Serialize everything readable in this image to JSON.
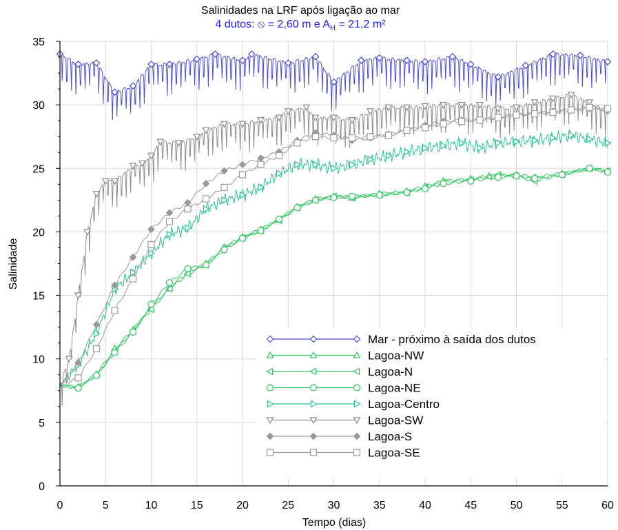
{
  "chart_data": {
    "type": "line",
    "title": "Salinidades na LRF após ligação ao mar",
    "subtitle": {
      "prefix": "4 dutos: ",
      "diameter_symbol": "⦸",
      "middle": " =  2,60 m e A",
      "sub": "H",
      "suffix": " = 21,2 m²"
    },
    "xlabel": "Tempo (dias)",
    "ylabel": "Salinidade",
    "xlim": [
      0,
      60
    ],
    "ylim": [
      0,
      35
    ],
    "xticks": [
      "0",
      "5",
      "10",
      "15",
      "20",
      "25",
      "30",
      "35",
      "40",
      "45",
      "50",
      "55",
      "60"
    ],
    "yticks": [
      "0",
      "5",
      "10",
      "15",
      "20",
      "25",
      "30",
      "35"
    ],
    "grid": true,
    "legend_position": "lower-right",
    "series": [
      {
        "name": "Mar - próximo à saída dos dutos",
        "color": "#4a4ad8",
        "marker": "diamond",
        "style": "osc",
        "osc_amp": 2.6,
        "points": [
          [
            0,
            34
          ],
          [
            2,
            33.2
          ],
          [
            4,
            33.3
          ],
          [
            6,
            31
          ],
          [
            8,
            31.5
          ],
          [
            10,
            33.2
          ],
          [
            12,
            33.2
          ],
          [
            15,
            33.6
          ],
          [
            17,
            34
          ],
          [
            20,
            33.5
          ],
          [
            21,
            34
          ],
          [
            25,
            33.3
          ],
          [
            28,
            33.8
          ],
          [
            30,
            31.8
          ],
          [
            33,
            33.5
          ],
          [
            35,
            33.7
          ],
          [
            38,
            33.5
          ],
          [
            40,
            33.4
          ],
          [
            43,
            33.8
          ],
          [
            45,
            33.2
          ],
          [
            48,
            32.2
          ],
          [
            51,
            33.1
          ],
          [
            54,
            34
          ],
          [
            57,
            33.9
          ],
          [
            60,
            33.4
          ]
        ]
      },
      {
        "name": "Lagoa-NW",
        "color": "#2ec860",
        "marker": "triangle-up",
        "style": "smooth",
        "points": [
          [
            0,
            7.9
          ],
          [
            2,
            7.8
          ],
          [
            4,
            8.8
          ],
          [
            6,
            10.8
          ],
          [
            8,
            12.3
          ],
          [
            10,
            14
          ],
          [
            12,
            15.6
          ],
          [
            14,
            16.8
          ],
          [
            16,
            17.5
          ],
          [
            18,
            18.8
          ],
          [
            20,
            19.6
          ],
          [
            22,
            20.2
          ],
          [
            24,
            21
          ],
          [
            26,
            22
          ],
          [
            28,
            22.6
          ],
          [
            30,
            22.8
          ],
          [
            32,
            22.7
          ],
          [
            35,
            23
          ],
          [
            38,
            23.2
          ],
          [
            40,
            23.6
          ],
          [
            42,
            24
          ],
          [
            45,
            24.2
          ],
          [
            47,
            24.4
          ],
          [
            50,
            24.5
          ],
          [
            52,
            24.3
          ],
          [
            55,
            24.6
          ],
          [
            58,
            25
          ],
          [
            60,
            24.8
          ]
        ]
      },
      {
        "name": "Lagoa-N",
        "color": "#2ec860",
        "marker": "triangle-left",
        "style": "smooth",
        "points": [
          [
            0,
            7.9
          ],
          [
            2,
            7.8
          ],
          [
            4,
            8.7
          ],
          [
            6,
            10.6
          ],
          [
            8,
            12.2
          ],
          [
            10,
            13.9
          ],
          [
            12,
            15.5
          ],
          [
            14,
            16.7
          ],
          [
            16,
            17.4
          ],
          [
            18,
            18.7
          ],
          [
            20,
            19.5
          ],
          [
            22,
            20.1
          ],
          [
            24,
            20.9
          ],
          [
            26,
            21.9
          ],
          [
            28,
            22.5
          ],
          [
            30,
            22.8
          ],
          [
            32,
            22.7
          ],
          [
            35,
            22.9
          ],
          [
            38,
            23.1
          ],
          [
            40,
            23.5
          ],
          [
            42,
            23.9
          ],
          [
            45,
            24.1
          ],
          [
            48,
            24.5
          ],
          [
            50,
            24.4
          ],
          [
            52,
            24
          ],
          [
            55,
            24.5
          ],
          [
            58,
            25
          ],
          [
            60,
            24.8
          ]
        ]
      },
      {
        "name": "Lagoa-NE",
        "color": "#2ec860",
        "marker": "circle",
        "style": "smooth",
        "points": [
          [
            0,
            7.9
          ],
          [
            2,
            7.7
          ],
          [
            4,
            8.7
          ],
          [
            6,
            10.5
          ],
          [
            8,
            12.1
          ],
          [
            10,
            14.3
          ],
          [
            12,
            16
          ],
          [
            14,
            17.1
          ],
          [
            16,
            17.4
          ],
          [
            18,
            18.6
          ],
          [
            20,
            19.5
          ],
          [
            22,
            20.1
          ],
          [
            24,
            21
          ],
          [
            26,
            21.9
          ],
          [
            28,
            22.5
          ],
          [
            30,
            22.7
          ],
          [
            32,
            22.8
          ],
          [
            35,
            22.9
          ],
          [
            38,
            23.1
          ],
          [
            40,
            23.4
          ],
          [
            42,
            23.8
          ],
          [
            45,
            24
          ],
          [
            48,
            24.3
          ],
          [
            50,
            24.4
          ],
          [
            52,
            24.2
          ],
          [
            55,
            24.5
          ],
          [
            58,
            25
          ],
          [
            60,
            24.7
          ]
        ]
      },
      {
        "name": "Lagoa-Centro",
        "color": "#28c48e",
        "marker": "triangle-right",
        "style": "noisy",
        "osc_amp": 0.55,
        "points": [
          [
            0,
            7.9
          ],
          [
            2,
            9.5
          ],
          [
            4,
            12
          ],
          [
            6,
            15.5
          ],
          [
            8,
            16.8
          ],
          [
            10,
            18.3
          ],
          [
            12,
            19.8
          ],
          [
            14,
            20.3
          ],
          [
            16,
            21.8
          ],
          [
            18,
            22.5
          ],
          [
            20,
            22.9
          ],
          [
            22,
            23.5
          ],
          [
            24,
            24.6
          ],
          [
            26,
            25.3
          ],
          [
            28,
            25.3
          ],
          [
            30,
            25
          ],
          [
            32,
            25.3
          ],
          [
            34,
            25.7
          ],
          [
            36,
            26
          ],
          [
            38,
            26.3
          ],
          [
            40,
            26.6
          ],
          [
            42,
            26.8
          ],
          [
            44,
            27
          ],
          [
            46,
            26.6
          ],
          [
            48,
            27
          ],
          [
            50,
            27.1
          ],
          [
            52,
            27.2
          ],
          [
            54,
            27.4
          ],
          [
            56,
            27.6
          ],
          [
            58,
            27.3
          ],
          [
            60,
            27
          ]
        ]
      },
      {
        "name": "Lagoa-SW",
        "color": "#8c8c8c",
        "marker": "triangle-down",
        "style": "osc",
        "osc_amp": 2.4,
        "points": [
          [
            0,
            7.9
          ],
          [
            1,
            10
          ],
          [
            2,
            15
          ],
          [
            3,
            20
          ],
          [
            4,
            23
          ],
          [
            5,
            24
          ],
          [
            6,
            24
          ],
          [
            8,
            25.2
          ],
          [
            9,
            25.4
          ],
          [
            10,
            26
          ],
          [
            11,
            27.1
          ],
          [
            13,
            27
          ],
          [
            15,
            27.5
          ],
          [
            16,
            28
          ],
          [
            18,
            28.5
          ],
          [
            20,
            28.5
          ],
          [
            22,
            28.8
          ],
          [
            24,
            29
          ],
          [
            25,
            29.5
          ],
          [
            27,
            29.8
          ],
          [
            28,
            29
          ],
          [
            30,
            29
          ],
          [
            32,
            28.8
          ],
          [
            34,
            29.5
          ],
          [
            36,
            29.8
          ],
          [
            38,
            29.8
          ],
          [
            40,
            29.9
          ],
          [
            42,
            30
          ],
          [
            44,
            30
          ],
          [
            46,
            30
          ],
          [
            48,
            29.7
          ],
          [
            50,
            29.8
          ],
          [
            52,
            30.2
          ],
          [
            54,
            30.5
          ],
          [
            56,
            30.8
          ],
          [
            58,
            30.2
          ],
          [
            60,
            29.5
          ]
        ]
      },
      {
        "name": "Lagoa-S",
        "color": "#999999",
        "marker": "diamond-filled",
        "style": "smooth",
        "points": [
          [
            0,
            7.9
          ],
          [
            2,
            9.7
          ],
          [
            4,
            12.7
          ],
          [
            6,
            15.8
          ],
          [
            8,
            18
          ],
          [
            10,
            20.2
          ],
          [
            12,
            21.5
          ],
          [
            14,
            22.3
          ],
          [
            16,
            23.8
          ],
          [
            18,
            24.8
          ],
          [
            20,
            25.3
          ],
          [
            22,
            25.8
          ],
          [
            24,
            26.3
          ],
          [
            26,
            27.2
          ],
          [
            28,
            27.8
          ],
          [
            30,
            27.6
          ],
          [
            32,
            27.2
          ],
          [
            34,
            27.4
          ],
          [
            36,
            27.7
          ],
          [
            38,
            28
          ],
          [
            40,
            28.4
          ],
          [
            42,
            28.7
          ],
          [
            44,
            28.8
          ],
          [
            46,
            28.8
          ],
          [
            48,
            29
          ],
          [
            50,
            29.2
          ],
          [
            52,
            29.3
          ],
          [
            54,
            29.5
          ],
          [
            56,
            29.6
          ],
          [
            58,
            29.7
          ],
          [
            60,
            29.6
          ]
        ]
      },
      {
        "name": "Lagoa-SE",
        "color": "#9a9a9a",
        "marker": "square",
        "style": "smooth",
        "points": [
          [
            0,
            7.9
          ],
          [
            2,
            8.5
          ],
          [
            4,
            10.8
          ],
          [
            6,
            13.8
          ],
          [
            8,
            16.3
          ],
          [
            10,
            19
          ],
          [
            12,
            20.8
          ],
          [
            14,
            21.8
          ],
          [
            16,
            22.6
          ],
          [
            18,
            23.5
          ],
          [
            20,
            24.5
          ],
          [
            22,
            25.3
          ],
          [
            24,
            26
          ],
          [
            26,
            27
          ],
          [
            28,
            27.5
          ],
          [
            30,
            27.4
          ],
          [
            32,
            27.4
          ],
          [
            34,
            27.5
          ],
          [
            36,
            27.6
          ],
          [
            38,
            28
          ],
          [
            40,
            28.2
          ],
          [
            42,
            28.5
          ],
          [
            44,
            28.7
          ],
          [
            46,
            28.8
          ],
          [
            48,
            29
          ],
          [
            50,
            29.2
          ],
          [
            52,
            29.3
          ],
          [
            54,
            29.4
          ],
          [
            56,
            29.6
          ],
          [
            58,
            29.8
          ],
          [
            60,
            29.7
          ]
        ]
      }
    ]
  }
}
